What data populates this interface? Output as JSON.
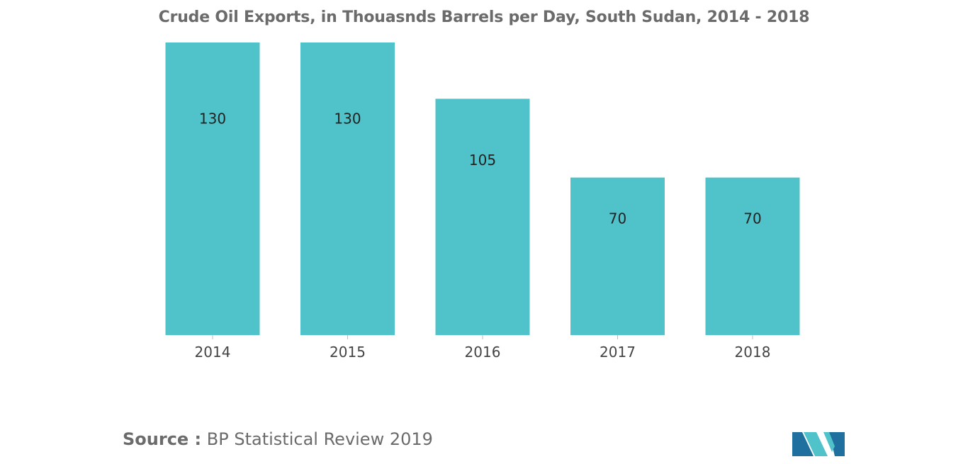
{
  "chart_data": {
    "type": "bar",
    "title": "Crude Oil Exports, in Thouasnds Barrels per Day, South Sudan, 2014 - 2018",
    "categories": [
      "2014",
      "2015",
      "2016",
      "2017",
      "2018"
    ],
    "values": [
      130,
      130,
      105,
      70,
      70
    ],
    "xlabel": "",
    "ylabel": "",
    "ylim": [
      0,
      130
    ],
    "grid": false,
    "legend": "none",
    "bar_color": "#4fc3c9",
    "data_labels": [
      "130",
      "130",
      "105",
      "70",
      "70"
    ]
  },
  "source": {
    "label": "Source :",
    "text": "BP Statistical Review 2019"
  },
  "logo": {
    "icon": "mordor-intelligence-logo-icon",
    "colors": [
      "#1f6f9f",
      "#4fc3c9"
    ]
  }
}
